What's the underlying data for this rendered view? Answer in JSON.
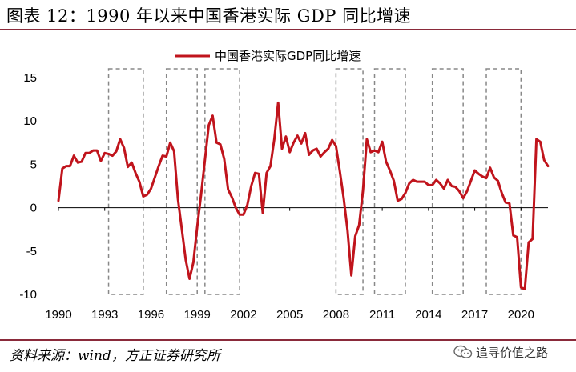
{
  "header": {
    "title": "图表 12：1990 年以来中国香港实际 GDP 同比增速"
  },
  "footer": {
    "source": "资料来源：wind，方正证券研究所",
    "watermark": "追寻价值之路"
  },
  "colors": {
    "line": "#c0141c",
    "rule": "#8a2a3a",
    "box": "#888888"
  },
  "icons": {
    "watermark_icon": "wechat-icon"
  },
  "chart_data": {
    "type": "line",
    "title": "",
    "xlabel": "",
    "ylabel": "",
    "xlim": [
      1990,
      2021.75
    ],
    "ylim": [
      -10,
      15
    ],
    "x_ticks": [
      1990,
      1993,
      1996,
      1999,
      2002,
      2005,
      2008,
      2011,
      2014,
      2017,
      2020
    ],
    "y_ticks": [
      15,
      10,
      5,
      0,
      -5,
      -10
    ],
    "grid": false,
    "legend": "top-center",
    "series": [
      {
        "name": "中国香港实际GDP同比增速",
        "x": [
          1990.0,
          1990.25,
          1990.5,
          1990.75,
          1991.0,
          1991.25,
          1991.5,
          1991.75,
          1992.0,
          1992.25,
          1992.5,
          1992.75,
          1993.0,
          1993.25,
          1993.5,
          1993.75,
          1994.0,
          1994.25,
          1994.5,
          1994.75,
          1995.0,
          1995.25,
          1995.5,
          1995.75,
          1996.0,
          1996.25,
          1996.5,
          1996.75,
          1997.0,
          1997.25,
          1997.5,
          1997.75,
          1998.0,
          1998.25,
          1998.5,
          1998.75,
          1999.0,
          1999.25,
          1999.5,
          1999.75,
          2000.0,
          2000.25,
          2000.5,
          2000.75,
          2001.0,
          2001.25,
          2001.5,
          2001.75,
          2002.0,
          2002.25,
          2002.5,
          2002.75,
          2003.0,
          2003.25,
          2003.5,
          2003.75,
          2004.0,
          2004.25,
          2004.5,
          2004.75,
          2005.0,
          2005.25,
          2005.5,
          2005.75,
          2006.0,
          2006.25,
          2006.5,
          2006.75,
          2007.0,
          2007.25,
          2007.5,
          2007.75,
          2008.0,
          2008.25,
          2008.5,
          2008.75,
          2009.0,
          2009.25,
          2009.5,
          2009.75,
          2010.0,
          2010.25,
          2010.5,
          2010.75,
          2011.0,
          2011.25,
          2011.5,
          2011.75,
          2012.0,
          2012.25,
          2012.5,
          2012.75,
          2013.0,
          2013.25,
          2013.5,
          2013.75,
          2014.0,
          2014.25,
          2014.5,
          2014.75,
          2015.0,
          2015.25,
          2015.5,
          2015.75,
          2016.0,
          2016.25,
          2016.5,
          2016.75,
          2017.0,
          2017.25,
          2017.5,
          2017.75,
          2018.0,
          2018.25,
          2018.5,
          2018.75,
          2019.0,
          2019.25,
          2019.5,
          2019.75,
          2020.0,
          2020.25,
          2020.5,
          2020.75,
          2021.0,
          2021.25,
          2021.5,
          2021.75
        ],
        "values": [
          0.8,
          4.5,
          4.8,
          4.8,
          6.0,
          5.2,
          5.3,
          6.3,
          6.3,
          6.6,
          6.6,
          5.4,
          6.3,
          6.2,
          6.0,
          6.5,
          7.9,
          6.9,
          4.7,
          5.2,
          4.0,
          3.0,
          1.3,
          1.5,
          2.2,
          3.5,
          4.8,
          6.0,
          5.9,
          7.5,
          6.5,
          1.0,
          -2.5,
          -6.0,
          -8.2,
          -6.3,
          -2.2,
          1.5,
          5.5,
          9.5,
          10.6,
          7.5,
          7.3,
          5.6,
          2.1,
          1.2,
          0.0,
          -0.8,
          -0.8,
          0.3,
          2.5,
          4.0,
          3.9,
          -0.6,
          4.0,
          4.8,
          7.9,
          12.1,
          6.8,
          8.2,
          6.4,
          7.5,
          8.3,
          7.4,
          8.6,
          6.1,
          6.6,
          6.8,
          5.9,
          6.4,
          6.8,
          7.8,
          7.1,
          4.2,
          1.1,
          -2.6,
          -7.8,
          -3.3,
          -2.0,
          2.0,
          7.9,
          6.4,
          6.6,
          6.4,
          7.6,
          5.3,
          4.3,
          3.1,
          0.8,
          1.0,
          1.7,
          2.8,
          3.2,
          3.0,
          3.0,
          3.0,
          2.6,
          2.6,
          3.2,
          2.8,
          2.2,
          3.2,
          2.5,
          2.4,
          1.9,
          1.1,
          1.9,
          3.1,
          4.3,
          3.9,
          3.6,
          3.4,
          4.6,
          3.5,
          3.1,
          1.7,
          0.6,
          0.5,
          -3.2,
          -3.4,
          -9.2,
          -9.4,
          -4.0,
          -3.6,
          7.9,
          7.6,
          5.5,
          4.8
        ]
      }
    ],
    "highlight_periods": [
      [
        1993.25,
        1995.5
      ],
      [
        1997.0,
        1999.0
      ],
      [
        1999.5,
        2001.75
      ],
      [
        2008.0,
        2009.75
      ],
      [
        2010.5,
        2012.5
      ],
      [
        2014.25,
        2016.25
      ],
      [
        2017.75,
        2020.0
      ]
    ]
  }
}
